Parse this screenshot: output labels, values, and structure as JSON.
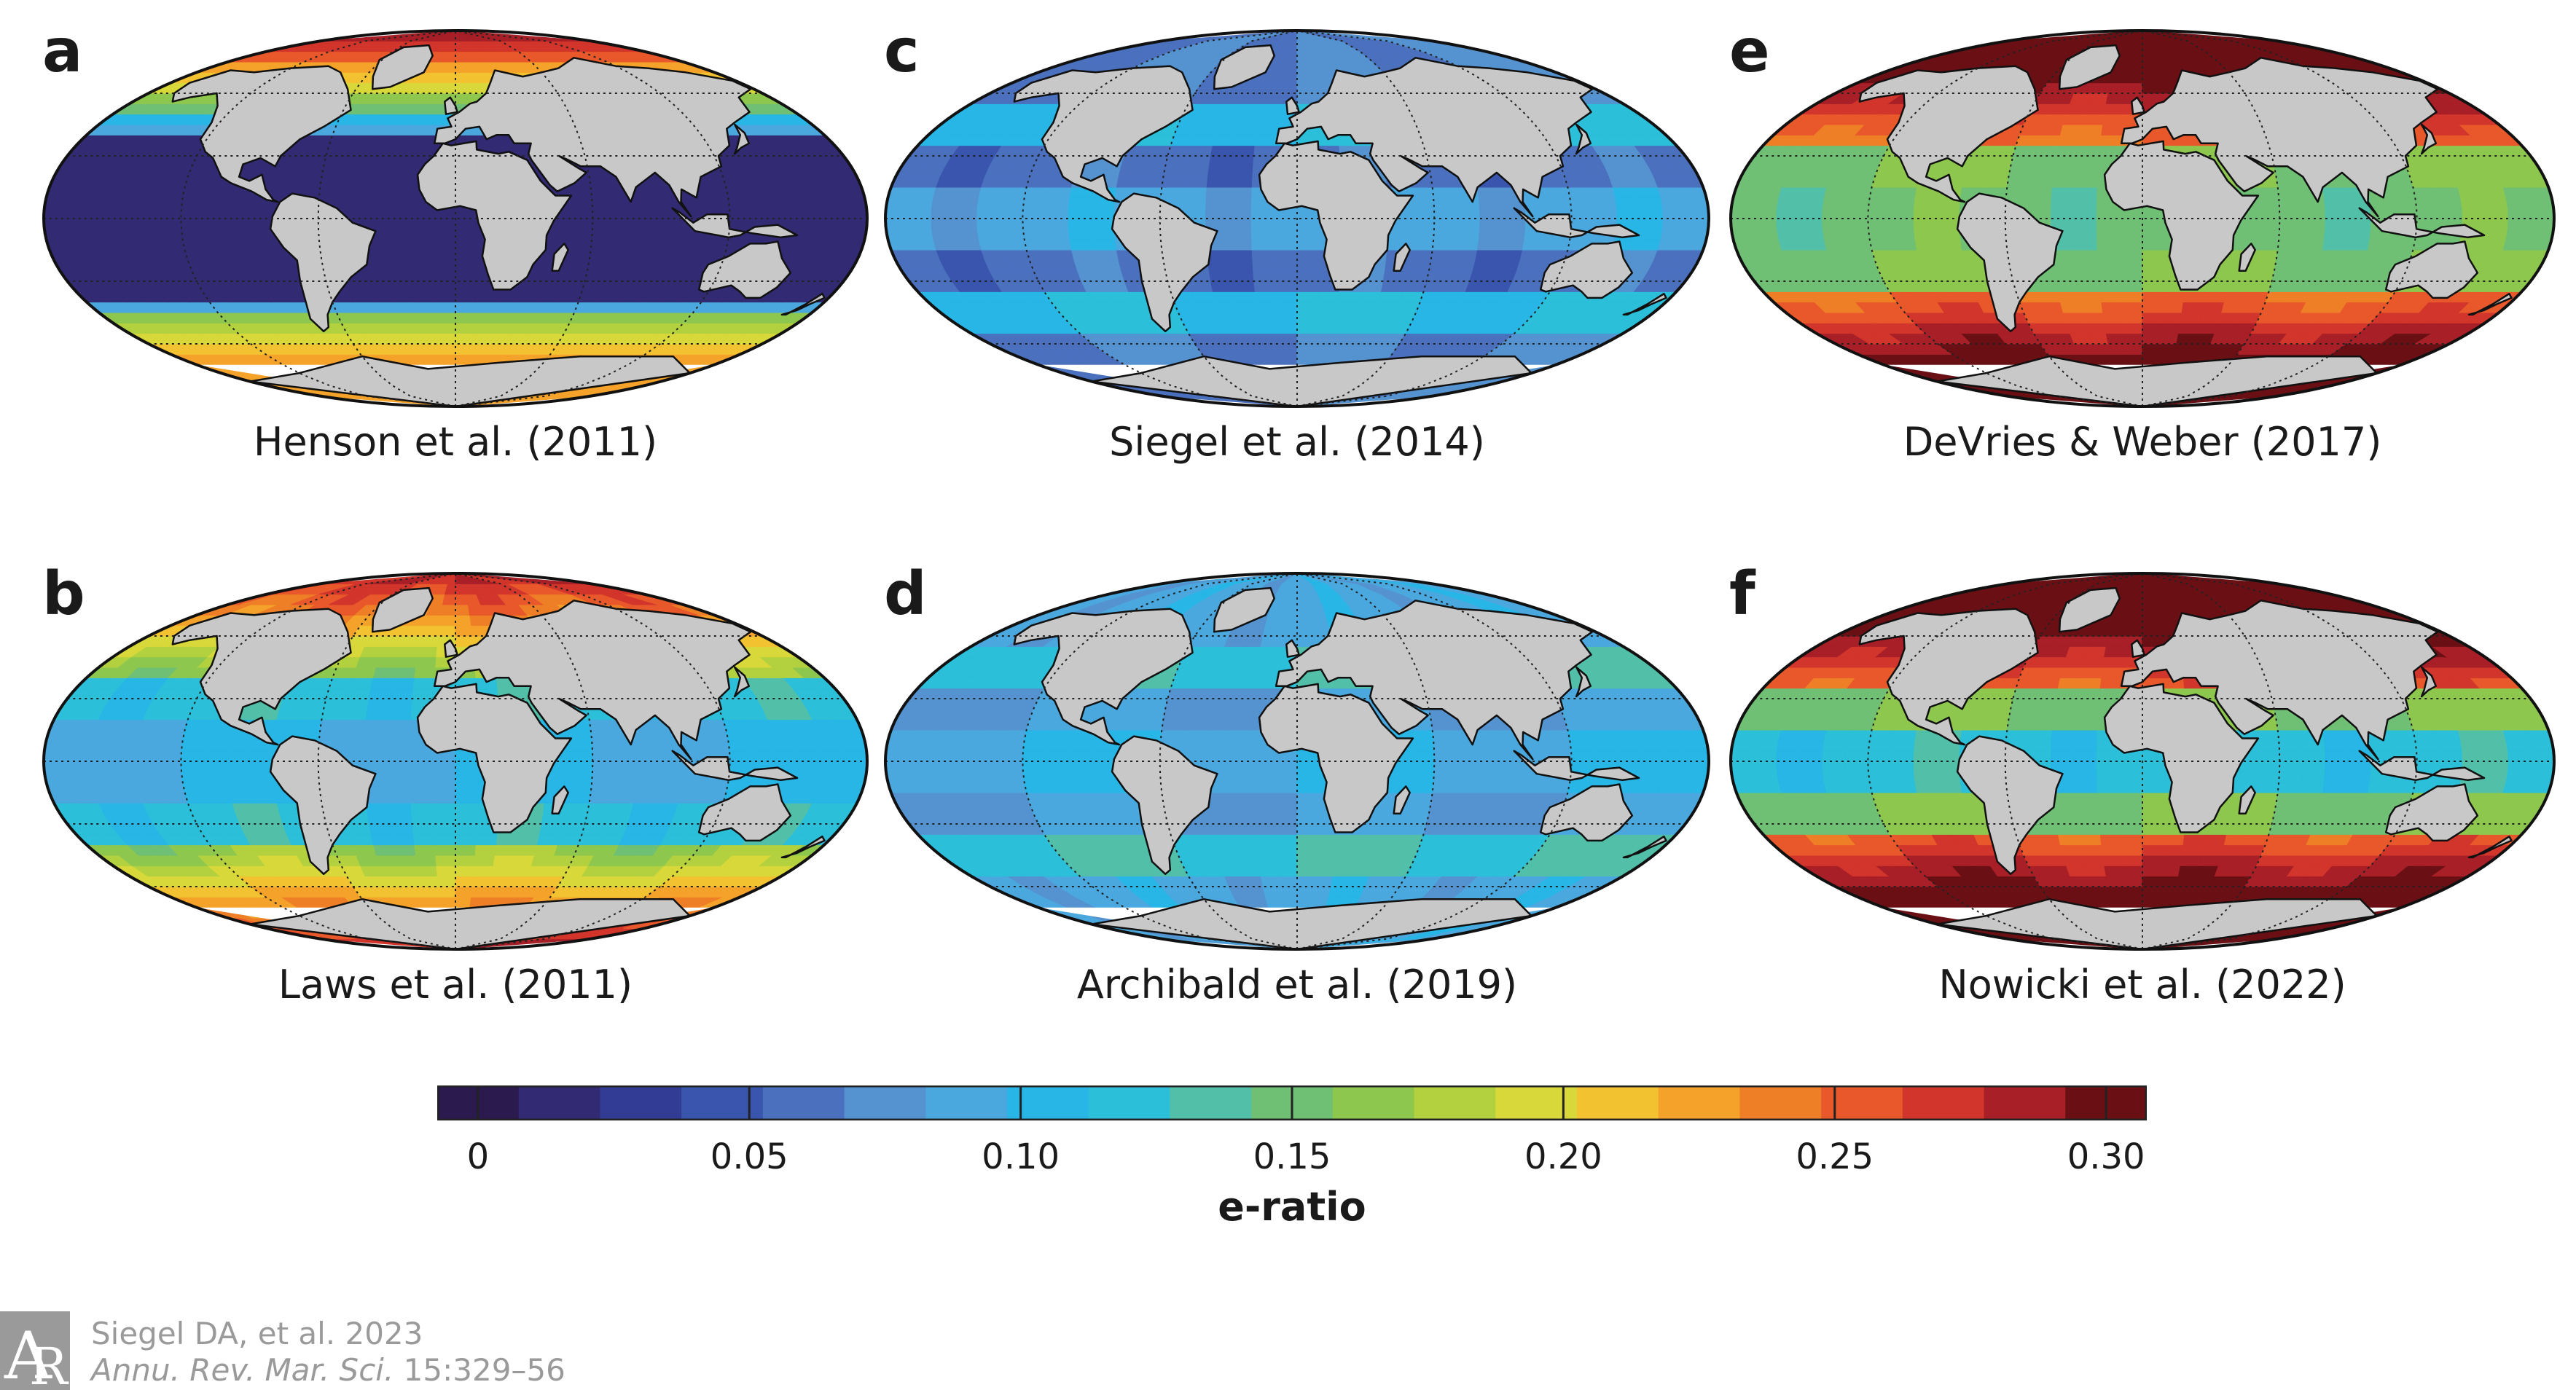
{
  "panels": [
    {
      "letter": "a",
      "caption": "Henson et al. (2011)",
      "scheme": "henson"
    },
    {
      "letter": "b",
      "caption": "Laws et al. (2011)",
      "scheme": "laws"
    },
    {
      "letter": "c",
      "caption": "Siegel et al. (2014)",
      "scheme": "siegel"
    },
    {
      "letter": "d",
      "caption": "Archibald et al. (2019)",
      "scheme": "archibald"
    },
    {
      "letter": "e",
      "caption": "DeVries & Weber (2017)",
      "scheme": "devries"
    },
    {
      "letter": "f",
      "caption": "Nowicki et al. (2022)",
      "scheme": "nowicki"
    }
  ],
  "colorbar": {
    "title": "e-ratio",
    "ticks": [
      "0",
      "0.05",
      "0.10",
      "0.15",
      "0.20",
      "0.25",
      "0.30"
    ],
    "tick_values": [
      0,
      0.05,
      0.1,
      0.15,
      0.2,
      0.25,
      0.3
    ],
    "range": [
      -0.0075,
      0.3075
    ],
    "bins": 20,
    "colors": [
      "#2a1a4e",
      "#322a72",
      "#323c94",
      "#3a55ad",
      "#4a70be",
      "#5592d0",
      "#4aa8de",
      "#27b6e6",
      "#2bbfd9",
      "#52c0a9",
      "#6fbf75",
      "#8ec74e",
      "#b3d13e",
      "#d8d83a",
      "#f2c230",
      "#f5a22a",
      "#ef7f27",
      "#e8582a",
      "#d2352b",
      "#a81f27",
      "#6a1015"
    ]
  },
  "map": {
    "land_color": "#c8c8c8",
    "land_border": "#111111",
    "grid_color": "#222222"
  },
  "citation": {
    "line1": "Siegel DA, et al. 2023",
    "journal": "Annu. Rev. Mar. Sci.",
    "pages": " 15:329–56"
  }
}
